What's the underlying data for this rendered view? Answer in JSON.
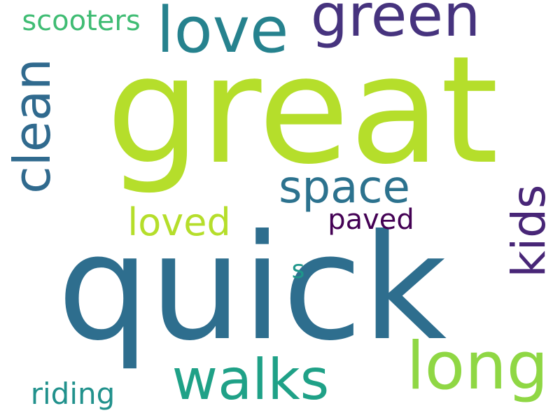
{
  "words": {
    "great": {
      "text": "great",
      "color": "#b5de2b"
    },
    "quick": {
      "text": "quick",
      "color": "#2e6e8e"
    },
    "green": {
      "text": "green",
      "color": "#46337e"
    },
    "love": {
      "text": "love",
      "color": "#26828e"
    },
    "scooters": {
      "text": "scooters",
      "color": "#3fbc73"
    },
    "clean": {
      "text": "clean",
      "color": "#306a8e"
    },
    "space": {
      "text": "space",
      "color": "#2c728e"
    },
    "kids": {
      "text": "kids",
      "color": "#482677"
    },
    "loved": {
      "text": "loved",
      "color": "#b5de2b"
    },
    "paved": {
      "text": "paved",
      "color": "#440154"
    },
    "s": {
      "text": "s",
      "color": "#1f968b"
    },
    "long": {
      "text": "long",
      "color": "#8fd744"
    },
    "walks": {
      "text": "walks",
      "color": "#1fa187"
    },
    "riding": {
      "text": "riding",
      "color": "#21918c"
    }
  }
}
